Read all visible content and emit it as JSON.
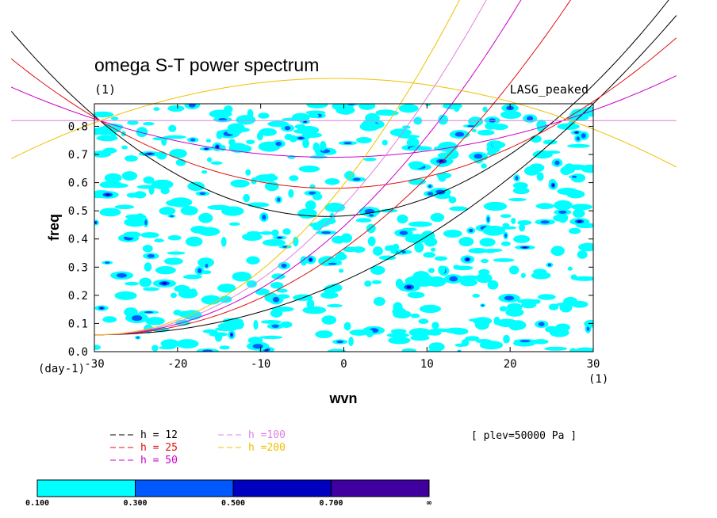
{
  "chart_data": {
    "type": "heatmap",
    "title": "omega S-T power spectrum",
    "subtitle": "(1)",
    "right_label": "LASG_peaked",
    "xlabel": "wvn",
    "ylabel": "freq",
    "x_unit": "(1)",
    "y_unit": "(day-1)",
    "xlim": [
      -30,
      30
    ],
    "ylim": [
      0,
      0.88
    ],
    "x_ticks": [
      "-30",
      "-20",
      "-10",
      "0",
      "10",
      "20",
      "30"
    ],
    "x_tick_values": [
      -30,
      -20,
      -10,
      0,
      10,
      20,
      30
    ],
    "y_ticks": [
      "0.0",
      "0.1",
      "0.2",
      "0.3",
      "0.4",
      "0.5",
      "0.6",
      "0.7",
      "0.8"
    ],
    "y_tick_values": [
      0,
      0.1,
      0.2,
      0.3,
      0.4,
      0.5,
      0.6,
      0.7,
      0.8
    ],
    "annotation": "[ plev=50000 Pa ]",
    "curve_sets": [
      {
        "label": "h = 12",
        "color": "#000000",
        "minima": [
          [
            -2,
            0.48
          ]
        ],
        "kelvin_x_at_top": 30
      },
      {
        "label": "h = 25",
        "color": "#e01010",
        "minima": [
          [
            -1.5,
            0.58
          ]
        ],
        "kelvin_x_at_top": 18
      },
      {
        "label": "h = 50",
        "color": "#cc00cc",
        "minima": [
          [
            -1.5,
            0.69
          ]
        ],
        "kelvin_x_at_top": 13
      },
      {
        "label": "h =100",
        "color": "#e080e0",
        "minima": [
          [
            -1.5,
            0.82
          ]
        ],
        "kelvin_x_at_top": 9.5
      },
      {
        "label": "h =200",
        "color": "#f0c000",
        "minima": [
          [
            -1,
            0.97
          ]
        ],
        "kelvin_x_at_top": 6.8
      }
    ],
    "colorbar": {
      "levels": [
        "0.100",
        "0.300",
        "0.500",
        "0.700",
        "∞"
      ],
      "colors": [
        "#00ffff",
        "#0058ff",
        "#0000c0",
        "#4000a0"
      ]
    }
  }
}
